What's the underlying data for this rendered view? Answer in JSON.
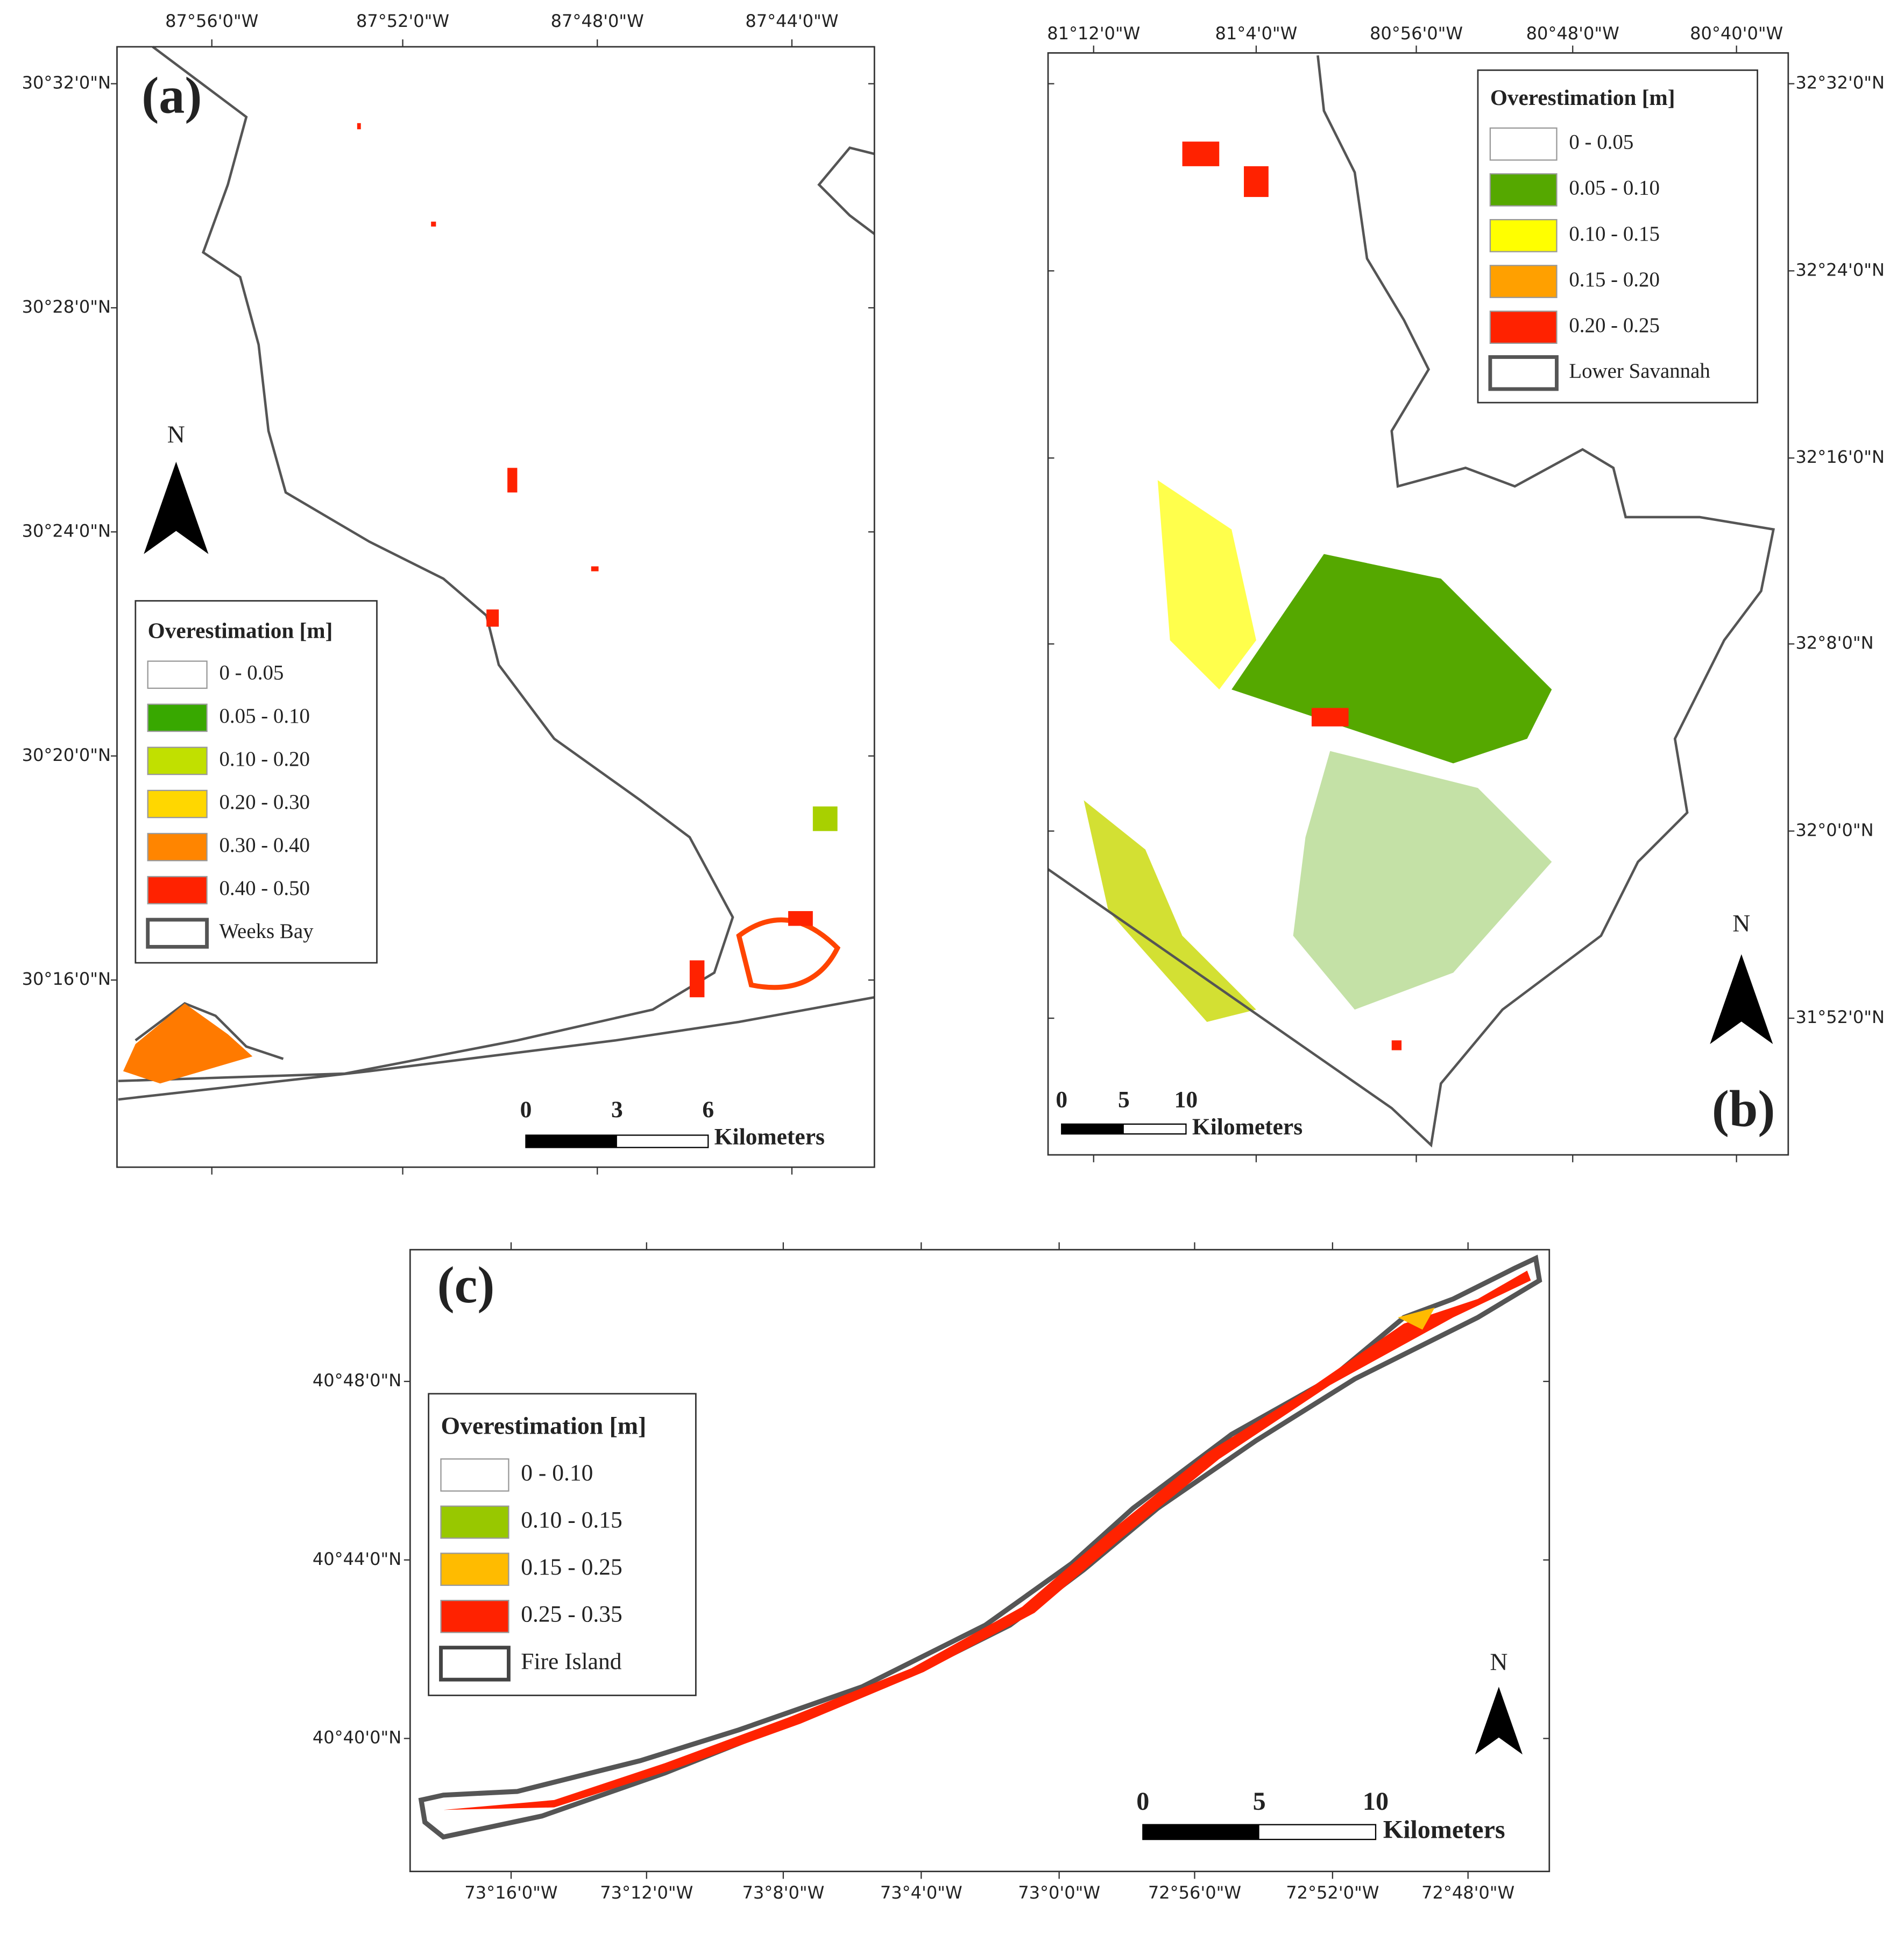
{
  "panels": [
    {
      "label": "(a)",
      "lon_ticks": [
        "87°56'0\"W",
        "87°52'0\"W",
        "87°48'0\"W",
        "87°44'0\"W"
      ],
      "lat_ticks": [
        "30°32'0\"N",
        "30°28'0\"N",
        "30°24'0\"N",
        "30°20'0\"N",
        "30°16'0\"N"
      ],
      "legend": {
        "title": "Overestimation [m]",
        "items": [
          {
            "label": "0 - 0.05",
            "color": "#ffffff"
          },
          {
            "label": "0.05 - 0.10",
            "color": "#38a800"
          },
          {
            "label": "0.10 - 0.20",
            "color": "#c1e000"
          },
          {
            "label": "0.20 - 0.30",
            "color": "#ffd700"
          },
          {
            "label": "0.30 - 0.40",
            "color": "#ff8500"
          },
          {
            "label": "0.40 - 0.50",
            "color": "#ff2200"
          },
          {
            "label": "Weeks Bay",
            "outline": "#555555"
          }
        ]
      },
      "scale": {
        "ticks": [
          "0",
          "3",
          "6"
        ],
        "unit": "Kilometers"
      },
      "north": "N"
    },
    {
      "label": "(b)",
      "lon_ticks": [
        "81°12'0\"W",
        "81°4'0\"W",
        "80°56'0\"W",
        "80°48'0\"W",
        "80°40'0\"W"
      ],
      "lat_ticks": [
        "32°32'0\"N",
        "32°24'0\"N",
        "32°16'0\"N",
        "32°8'0\"N",
        "32°0'0\"N",
        "31°52'0\"N"
      ],
      "legend": {
        "title": "Overestimation [m]",
        "items": [
          {
            "label": "0 - 0.05",
            "color": "#ffffff"
          },
          {
            "label": "0.05 - 0.10",
            "color": "#55a800"
          },
          {
            "label": "0.10 - 0.15",
            "color": "#ffff00"
          },
          {
            "label": "0.15 - 0.20",
            "color": "#ffa000"
          },
          {
            "label": "0.20 - 0.25",
            "color": "#ff2200"
          },
          {
            "label": "Lower Savannah",
            "outline": "#555555"
          }
        ]
      },
      "scale": {
        "ticks": [
          "0",
          "5",
          "10"
        ],
        "unit": "Kilometers"
      },
      "north": "N"
    },
    {
      "label": "(c)",
      "lon_ticks": [
        "73°16'0\"W",
        "73°12'0\"W",
        "73°8'0\"W",
        "73°4'0\"W",
        "73°0'0\"W",
        "72°56'0\"W",
        "72°52'0\"W",
        "72°48'0\"W"
      ],
      "lat_ticks": [
        "40°48'0\"N",
        "40°44'0\"N",
        "40°40'0\"N"
      ],
      "legend": {
        "title": "Overestimation [m]",
        "items": [
          {
            "label": "0 - 0.10",
            "color": "#ffffff"
          },
          {
            "label": "0.10 - 0.15",
            "color": "#98c800"
          },
          {
            "label": "0.15 - 0.25",
            "color": "#ffbb00"
          },
          {
            "label": "0.25 - 0.35",
            "color": "#ff2200"
          },
          {
            "label": "Fire Island",
            "outline": "#444444"
          }
        ]
      },
      "scale": {
        "ticks": [
          "0",
          "5",
          "10"
        ],
        "unit": "Kilometers"
      },
      "north": "N"
    }
  ]
}
